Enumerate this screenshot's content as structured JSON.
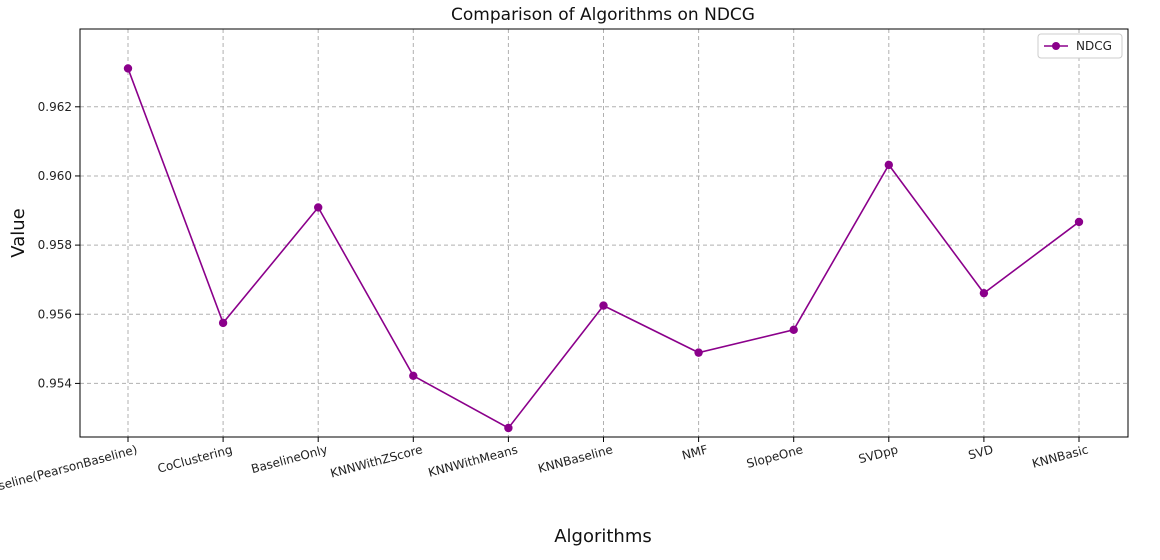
{
  "chart_data": {
    "type": "line",
    "title": "Comparison of Algorithms on NDCG",
    "xlabel": "Algorithms",
    "ylabel": "Value",
    "categories": [
      "KNNBaseline(PearsonBaseline)",
      "CoClustering",
      "BaselineOnly",
      "KNNWithZScore",
      "KNNWithMeans",
      "KNNBaseline",
      "NMF",
      "SlopeOne",
      "SVDpp",
      "SVD",
      "KNNBasic"
    ],
    "series": [
      {
        "name": "NDCG",
        "color": "#8b008b",
        "marker": "circle",
        "values": [
          0.96311,
          0.95575,
          0.95909,
          0.95422,
          0.95271,
          0.95625,
          0.95489,
          0.95555,
          0.96032,
          0.95661,
          0.95867
        ]
      }
    ],
    "ylim": [
      0.95245,
      0.96425
    ],
    "yticks": [
      0.954,
      0.956,
      0.958,
      0.96,
      0.962
    ],
    "ytick_labels": [
      "0.954",
      "0.956",
      "0.958",
      "0.960",
      "0.962"
    ],
    "grid": true,
    "legend_position": "top-right"
  }
}
